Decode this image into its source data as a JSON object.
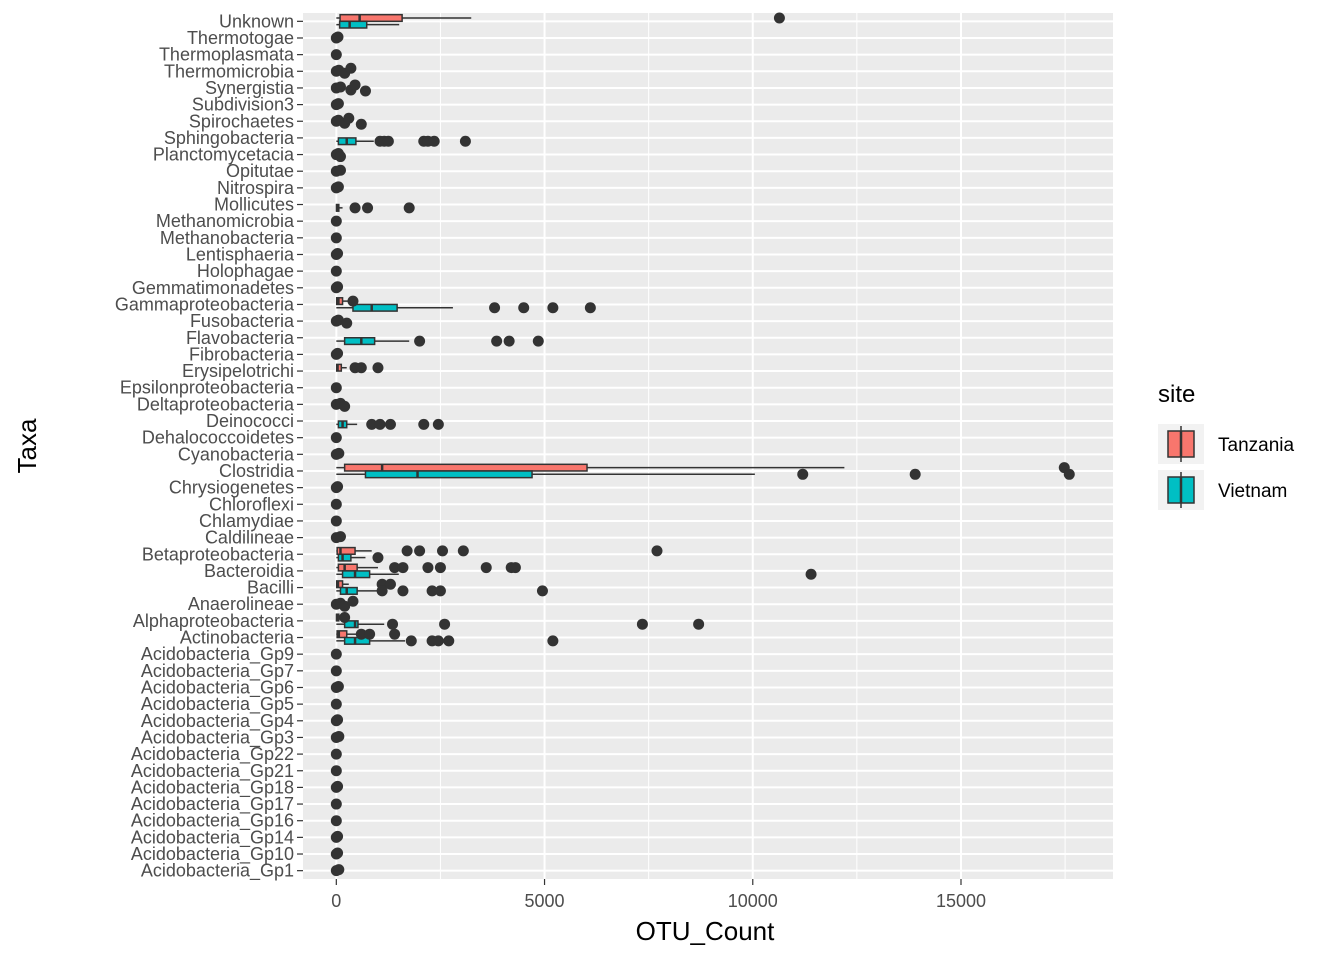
{
  "chart_data": {
    "type": "boxplot",
    "orientation": "horizontal",
    "title": "",
    "xlabel": "OTU_Count",
    "ylabel": "Taxa",
    "xlim": [
      -800,
      18650
    ],
    "xticks": [
      0,
      5000,
      10000,
      15000
    ],
    "xtick_labels": [
      "0",
      "5000",
      "10000",
      "15000"
    ],
    "grid": true,
    "legend": {
      "title": "site",
      "position": "right",
      "entries": [
        {
          "name": "Tanzania",
          "color": "#F8766D"
        },
        {
          "name": "Vietnam",
          "color": "#00BFC4"
        }
      ]
    },
    "colors": {
      "Tanzania": "#F8766D",
      "Vietnam": "#00BFC4",
      "panel": "#EBEBEB",
      "grid": "#FFFFFF",
      "ink": "#333333"
    },
    "categories": [
      "Acidobacteria_Gp1",
      "Acidobacteria_Gp10",
      "Acidobacteria_Gp14",
      "Acidobacteria_Gp16",
      "Acidobacteria_Gp17",
      "Acidobacteria_Gp18",
      "Acidobacteria_Gp21",
      "Acidobacteria_Gp22",
      "Acidobacteria_Gp3",
      "Acidobacteria_Gp4",
      "Acidobacteria_Gp5",
      "Acidobacteria_Gp6",
      "Acidobacteria_Gp7",
      "Acidobacteria_Gp9",
      "Actinobacteria",
      "Alphaproteobacteria",
      "Anaerolineae",
      "Bacilli",
      "Bacteroidia",
      "Betaproteobacteria",
      "Caldilineae",
      "Chlamydiae",
      "Chloroflexi",
      "Chrysiogenetes",
      "Clostridia",
      "Cyanobacteria",
      "Dehalococcoidetes",
      "Deinococci",
      "Deltaproteobacteria",
      "Epsilonproteobacteria",
      "Erysipelotrichi",
      "Fibrobacteria",
      "Flavobacteria",
      "Fusobacteria",
      "Gammaproteobacteria",
      "Gemmatimonadetes",
      "Holophagae",
      "Lentisphaeria",
      "Methanobacteria",
      "Methanomicrobia",
      "Mollicutes",
      "Nitrospira",
      "Opitutae",
      "Planctomycetacia",
      "Sphingobacteria",
      "Spirochaetes",
      "Subdivision3",
      "Synergistia",
      "Thermomicrobia",
      "Thermoplasmata",
      "Thermotogae",
      "Unknown"
    ],
    "series": [
      {
        "name": "Tanzania",
        "boxes": {
          "Unknown": {
            "whisker_low": 0,
            "q1": 90,
            "median": 560,
            "q3": 1580,
            "whisker_high": 3240,
            "outliers": [
              10640
            ]
          },
          "Clostridia": {
            "whisker_low": 0,
            "q1": 200,
            "median": 1100,
            "q3": 6020,
            "whisker_high": 12200,
            "outliers": [
              17480
            ]
          },
          "Betaproteobacteria": {
            "whisker_low": 0,
            "q1": 20,
            "median": 100,
            "q3": 450,
            "whisker_high": 850,
            "outliers": [
              1700,
              2000,
              2550,
              3050,
              7700
            ]
          },
          "Bacteroidia": {
            "whisker_low": 0,
            "q1": 50,
            "median": 200,
            "q3": 500,
            "whisker_high": 1000,
            "outliers": [
              1400,
              1600,
              2200,
              2500,
              3600,
              4200,
              4300
            ]
          },
          "Actinobacteria": {
            "whisker_low": 0,
            "q1": 20,
            "median": 60,
            "q3": 250,
            "whisker_high": 500,
            "outliers": [
              600,
              800,
              1400
            ]
          },
          "Erysipelotrichi": {
            "whisker_low": 0,
            "q1": 10,
            "median": 30,
            "q3": 120,
            "whisker_high": 250,
            "outliers": [
              450,
              600,
              1000
            ]
          },
          "Gammaproteobacteria": {
            "whisker_low": 0,
            "q1": 10,
            "median": 50,
            "q3": 150,
            "whisker_high": 300,
            "outliers": [
              400
            ]
          },
          "Alphaproteobacteria": {
            "whisker_low": 0,
            "q1": 5,
            "median": 20,
            "q3": 60,
            "whisker_high": 120,
            "outliers": [
              200
            ]
          },
          "Bacilli": {
            "whisker_low": 0,
            "q1": 10,
            "median": 40,
            "q3": 150,
            "whisker_high": 300,
            "outliers": [
              1100,
              1300
            ]
          }
        }
      },
      {
        "name": "Vietnam",
        "boxes": {
          "Unknown": {
            "whisker_low": 0,
            "q1": 80,
            "median": 320,
            "q3": 730,
            "whisker_high": 1510,
            "outliers": []
          },
          "Sphingobacteria": {
            "whisker_low": 0,
            "q1": 50,
            "median": 250,
            "q3": 470,
            "whisker_high": 900,
            "outliers": [
              1050,
              1150,
              1250,
              2100,
              2200,
              2350,
              3100
            ]
          },
          "Gammaproteobacteria": {
            "whisker_low": 0,
            "q1": 400,
            "median": 850,
            "q3": 1460,
            "whisker_high": 2800,
            "outliers": [
              3800,
              4500,
              5200,
              6100
            ]
          },
          "Flavobacteria": {
            "whisker_low": 0,
            "q1": 200,
            "median": 600,
            "q3": 920,
            "whisker_high": 1750,
            "outliers": [
              2000,
              3850,
              4150,
              4850
            ]
          },
          "Clostridia": {
            "whisker_low": 0,
            "q1": 700,
            "median": 1950,
            "q3": 4700,
            "whisker_high": 10050,
            "outliers": [
              11200,
              13900,
              17600
            ]
          },
          "Betaproteobacteria": {
            "whisker_low": 0,
            "q1": 50,
            "median": 150,
            "q3": 350,
            "whisker_high": 700,
            "outliers": [
              1000
            ]
          },
          "Bacteroidia": {
            "whisker_low": 0,
            "q1": 150,
            "median": 450,
            "q3": 800,
            "whisker_high": 1500,
            "outliers": [
              11400
            ]
          },
          "Bacilli": {
            "whisker_low": 0,
            "q1": 100,
            "median": 250,
            "q3": 500,
            "whisker_high": 1000,
            "outliers": [
              1100,
              1600,
              2300,
              2500,
              4950
            ]
          },
          "Alphaproteobacteria": {
            "whisker_low": 0,
            "q1": 200,
            "median": 450,
            "q3": 520,
            "whisker_high": 1150,
            "outliers": [
              1350,
              2600,
              7350,
              8700
            ]
          },
          "Actinobacteria": {
            "whisker_low": 0,
            "q1": 200,
            "median": 450,
            "q3": 800,
            "whisker_high": 1650,
            "outliers": [
              1800,
              2300,
              2450,
              2700,
              5200
            ]
          },
          "Deinococci": {
            "whisker_low": 0,
            "q1": 50,
            "median": 150,
            "q3": 250,
            "whisker_high": 500,
            "outliers": [
              850,
              1050,
              1300,
              2100,
              2450
            ]
          },
          "Mollicutes": {
            "whisker_low": 0,
            "q1": 5,
            "median": 20,
            "q3": 60,
            "whisker_high": 150,
            "outliers": [
              450,
              750,
              1750
            ]
          }
        }
      }
    ],
    "near_zero_points": {
      "Thermotogae": [
        0,
        40
      ],
      "Thermoplasmata": [
        0
      ],
      "Thermomicrobia": [
        0,
        60,
        200,
        350
      ],
      "Synergistia": [
        0,
        100,
        350,
        450,
        700
      ],
      "Subdivision3": [
        0,
        50
      ],
      "Spirochaetes": [
        0,
        50,
        200,
        300,
        600
      ],
      "Planctomycetacia": [
        0,
        50,
        100
      ],
      "Opitutae": [
        0,
        100
      ],
      "Nitrospira": [
        0,
        50
      ],
      "Methanomicrobia": [
        0
      ],
      "Methanobacteria": [
        0
      ],
      "Lentisphaeria": [
        0,
        30
      ],
      "Holophagae": [
        0
      ],
      "Gemmatimonadetes": [
        0,
        30
      ],
      "Fusobacteria": [
        0,
        50,
        250
      ],
      "Fibrobacteria": [
        0,
        30
      ],
      "Epsilonproteobacteria": [
        0
      ],
      "Deltaproteobacteria": [
        0,
        100,
        200
      ],
      "Dehalococcoidetes": [
        0
      ],
      "Cyanobacteria": [
        0,
        60
      ],
      "Chrysiogenetes": [
        0,
        30
      ],
      "Chloroflexi": [
        0
      ],
      "Chlamydiae": [
        0
      ],
      "Caldilineae": [
        0,
        100
      ],
      "Anaerolineae": [
        0,
        100,
        200,
        400
      ],
      "Acidobacteria_Gp9": [
        0
      ],
      "Acidobacteria_Gp7": [
        0
      ],
      "Acidobacteria_Gp6": [
        0,
        50
      ],
      "Acidobacteria_Gp5": [
        0
      ],
      "Acidobacteria_Gp4": [
        0,
        30
      ],
      "Acidobacteria_Gp3": [
        0,
        60
      ],
      "Acidobacteria_Gp22": [
        0
      ],
      "Acidobacteria_Gp21": [
        0
      ],
      "Acidobacteria_Gp18": [
        0,
        30
      ],
      "Acidobacteria_Gp17": [
        0
      ],
      "Acidobacteria_Gp16": [
        0
      ],
      "Acidobacteria_Gp14": [
        0,
        30
      ],
      "Acidobacteria_Gp10": [
        0,
        30
      ],
      "Acidobacteria_Gp1": [
        0,
        60
      ]
    }
  }
}
